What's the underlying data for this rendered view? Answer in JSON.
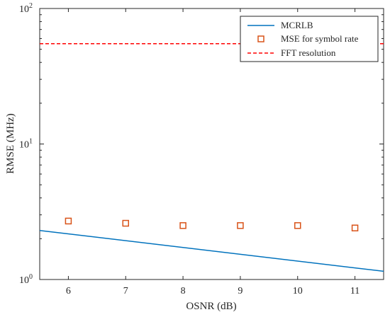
{
  "chart_data": {
    "type": "line",
    "xlabel": "OSNR (dB)",
    "ylabel": "RMSE (MHz)",
    "xlim": [
      5.5,
      11.5
    ],
    "ylim": [
      1,
      100
    ],
    "yscale": "log",
    "grid": false,
    "legend_position": "top-right",
    "x_ticks": [
      "6",
      "7",
      "8",
      "9",
      "10",
      "11"
    ],
    "y_ticks": [
      {
        "value": 1,
        "base": "10",
        "exp": "0"
      },
      {
        "value": 10,
        "base": "10",
        "exp": "1"
      },
      {
        "value": 100,
        "base": "10",
        "exp": "2"
      }
    ],
    "series": [
      {
        "name": "MCRLB",
        "kind": "line",
        "color": "#0072BD",
        "x": [
          5.5,
          11.5
        ],
        "y": [
          2.3,
          1.15
        ]
      },
      {
        "name": "MSE for symbol rate",
        "kind": "marker-square",
        "color": "#D95319",
        "x": [
          6,
          7,
          8,
          9,
          10,
          11
        ],
        "y": [
          2.7,
          2.6,
          2.5,
          2.5,
          2.5,
          2.4
        ]
      },
      {
        "name": "FFT resolution",
        "kind": "dashed-line",
        "color": "#FF0000",
        "x": [
          5.5,
          11.5
        ],
        "y": [
          55,
          55
        ]
      }
    ]
  }
}
